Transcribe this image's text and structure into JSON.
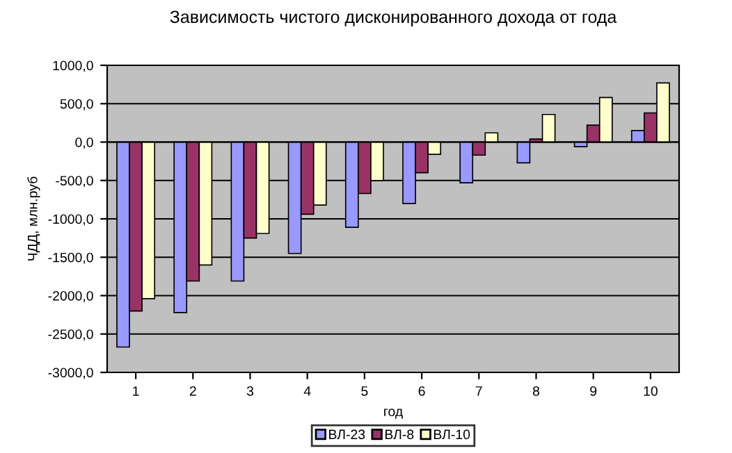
{
  "chart_data": {
    "type": "bar",
    "title": "Зависимость чистого дисконированного дохода от года",
    "xlabel": "год",
    "ylabel": "ЧДД, млн.руб",
    "categories": [
      "1",
      "2",
      "3",
      "4",
      "5",
      "6",
      "7",
      "8",
      "9",
      "10"
    ],
    "series": [
      {
        "name": "ВЛ-23",
        "color": "#9999ff",
        "values": [
          -2670,
          -2220,
          -1810,
          -1450,
          -1110,
          -800,
          -530,
          -270,
          -60,
          150
        ]
      },
      {
        "name": "ВЛ-8",
        "color": "#993366",
        "values": [
          -2200,
          -1810,
          -1250,
          -940,
          -670,
          -400,
          -170,
          40,
          220,
          380
        ]
      },
      {
        "name": "ВЛ-10",
        "color": "#ffffcc",
        "values": [
          -2040,
          -1600,
          -1190,
          -820,
          -500,
          -160,
          120,
          360,
          580,
          770
        ]
      }
    ],
    "ylim": [
      -3000,
      1000
    ],
    "yticks": [
      {
        "value": -3000,
        "label": "-3000,0"
      },
      {
        "value": -2500,
        "label": "-2500,0"
      },
      {
        "value": -2000,
        "label": "-2000,0"
      },
      {
        "value": -1500,
        "label": "-1500,0"
      },
      {
        "value": -1000,
        "label": "-1000,0"
      },
      {
        "value": -500,
        "label": "-500,0"
      },
      {
        "value": 0,
        "label": "0,0"
      },
      {
        "value": 500,
        "label": "500,0"
      },
      {
        "value": 1000,
        "label": "1000,0"
      }
    ],
    "grid": "y",
    "legend": "bottom"
  }
}
